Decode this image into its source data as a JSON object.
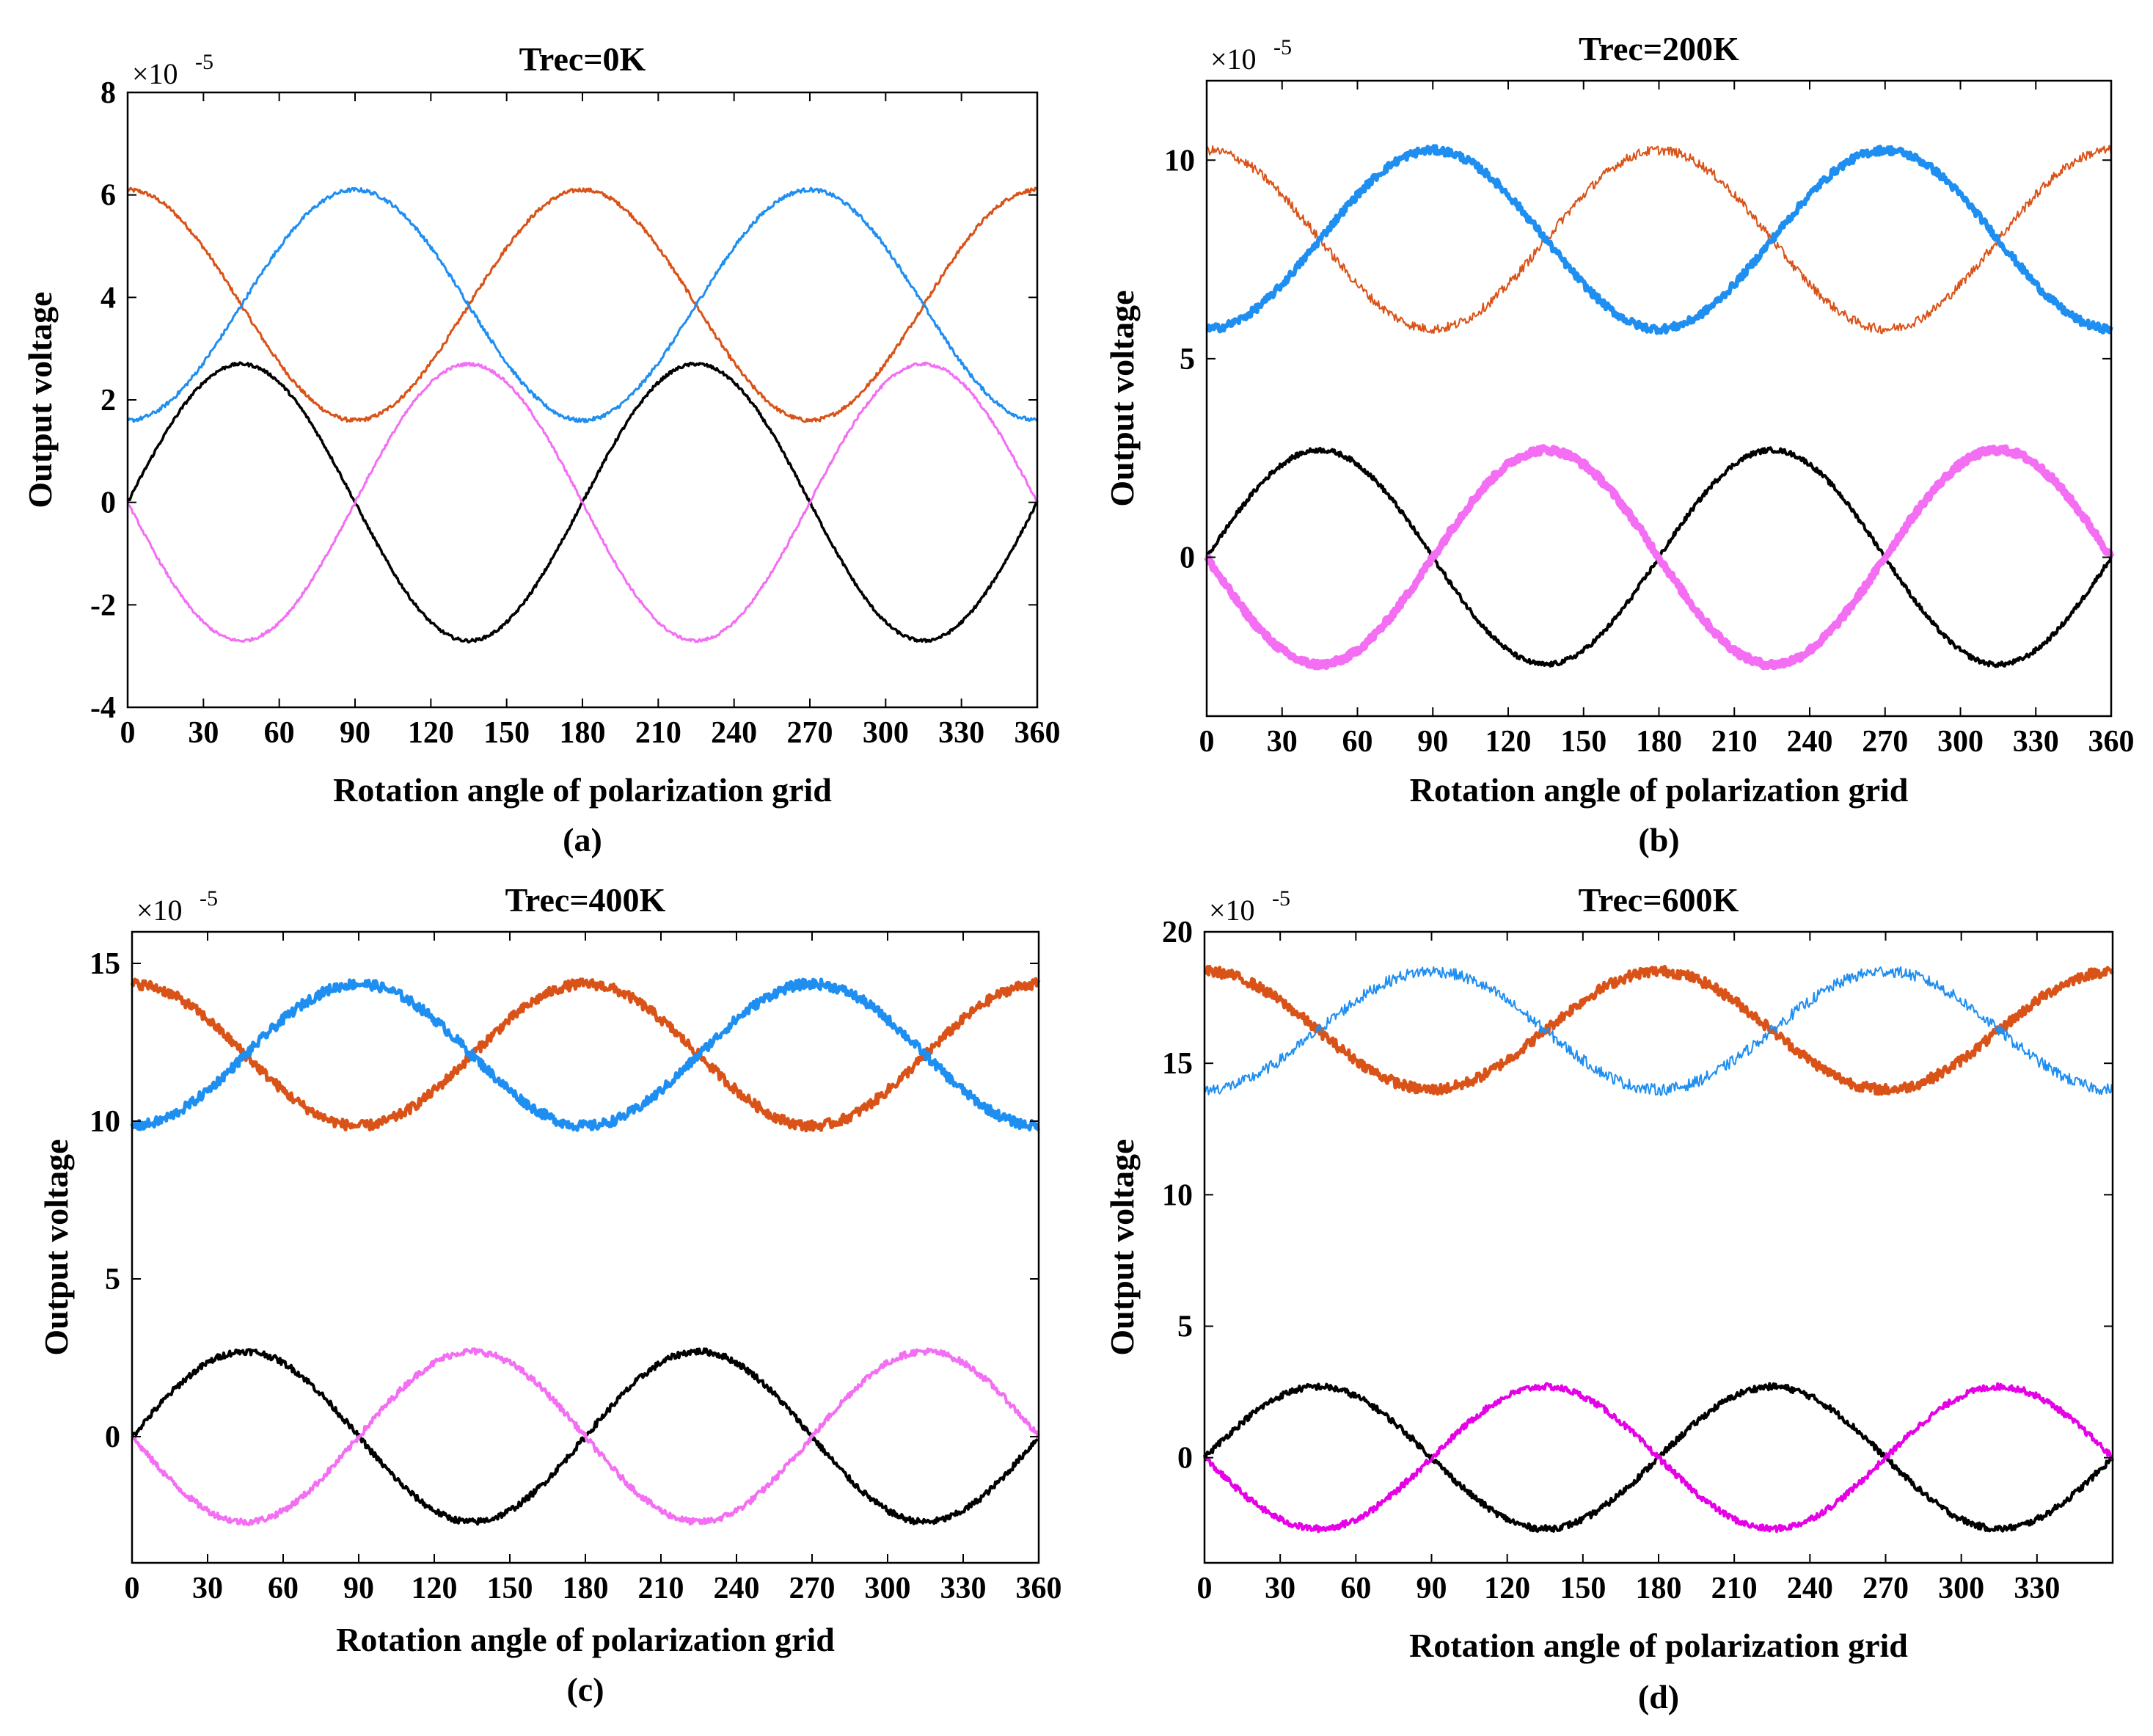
{
  "figure": {
    "panels": [
      "a",
      "b",
      "c",
      "d"
    ]
  },
  "chart_data": [
    {
      "id": "a",
      "type": "line",
      "title": "Trec=0K",
      "caption": "(a)",
      "xlabel": "Rotation angle of polarization grid",
      "ylabel": "Output voltage",
      "exponent_label": "×10",
      "exponent_power": "-5",
      "xlim": [
        0,
        360
      ],
      "ylim": [
        -4,
        8
      ],
      "xticks": [
        0,
        30,
        60,
        90,
        120,
        150,
        180,
        210,
        240,
        270,
        300,
        330,
        360
      ],
      "yticks": [
        -4,
        -2,
        0,
        2,
        4,
        6,
        8
      ],
      "yticklabels": [
        "-4",
        "-2",
        "0",
        "2",
        "4",
        "6",
        "8"
      ],
      "series": [
        {
          "name": "channel-orange",
          "color": "#d95319",
          "formula": "offset + amp*cos(2x)",
          "offset": 3.85,
          "amp": 2.25,
          "noise": 0.04,
          "width": 3
        },
        {
          "name": "channel-blue",
          "color": "#1f8ef1",
          "formula": "offset - amp*cos(2x)",
          "offset": 3.85,
          "amp": 2.25,
          "noise": 0.04,
          "width": 3
        },
        {
          "name": "channel-black",
          "color": "#000000",
          "formula": "amp*sin(2x)",
          "amp": 2.7,
          "noise": 0.03,
          "width": 3.5
        },
        {
          "name": "channel-magenta",
          "color": "#f36ef3",
          "formula": "-amp*sin(2x)",
          "amp": 2.7,
          "noise": 0.03,
          "width": 3
        }
      ]
    },
    {
      "id": "b",
      "type": "line",
      "title": "Trec=200K",
      "caption": "(b)",
      "xlabel": "Rotation angle of polarization grid",
      "ylabel": "Output voltage",
      "exponent_label": "×10",
      "exponent_power": "-5",
      "xlim": [
        0,
        360
      ],
      "ylim": [
        -4,
        12
      ],
      "xticks": [
        0,
        30,
        60,
        90,
        120,
        150,
        180,
        210,
        240,
        270,
        300,
        330,
        360
      ],
      "yticks": [
        0,
        5,
        10
      ],
      "yticklabels": [
        "0",
        "5",
        "10"
      ],
      "series": [
        {
          "name": "channel-orange",
          "color": "#d95319",
          "formula": "offset + amp*cos(2x)",
          "offset": 8.0,
          "amp": 2.25,
          "noise": 0.12,
          "width": 2
        },
        {
          "name": "channel-blue",
          "color": "#1f8ef1",
          "formula": "offset - amp*cos(2x)",
          "offset": 8.0,
          "amp": 2.25,
          "noise": 0.1,
          "width": 6
        },
        {
          "name": "channel-black",
          "color": "#000000",
          "formula": "amp*sin(2x)",
          "amp": 2.7,
          "noise": 0.06,
          "width": 4
        },
        {
          "name": "channel-magenta",
          "color": "#f36ef3",
          "formula": "-amp*sin(2x)",
          "amp": 2.7,
          "noise": 0.08,
          "width": 9
        }
      ]
    },
    {
      "id": "c",
      "type": "line",
      "title": "Trec=400K",
      "caption": "(c)",
      "xlabel": "Rotation angle of polarization grid",
      "ylabel": "Output voltage",
      "exponent_label": "×10",
      "exponent_power": "-5",
      "xlim": [
        0,
        360
      ],
      "ylim": [
        -4,
        16
      ],
      "xticks": [
        0,
        30,
        60,
        90,
        120,
        150,
        180,
        210,
        240,
        270,
        300,
        330,
        360
      ],
      "yticks": [
        0,
        5,
        10,
        15
      ],
      "yticklabels": [
        "0",
        "5",
        "10",
        "15"
      ],
      "series": [
        {
          "name": "channel-orange",
          "color": "#d95319",
          "formula": "offset + amp*cos(2x)",
          "offset": 12.1,
          "amp": 2.25,
          "noise": 0.16,
          "width": 5
        },
        {
          "name": "channel-blue",
          "color": "#1f8ef1",
          "formula": "offset - amp*cos(2x)",
          "offset": 12.1,
          "amp": 2.25,
          "noise": 0.16,
          "width": 5
        },
        {
          "name": "channel-black",
          "color": "#000000",
          "formula": "amp*sin(2x)",
          "amp": 2.7,
          "noise": 0.1,
          "width": 4
        },
        {
          "name": "channel-magenta",
          "color": "#f36ef3",
          "formula": "-amp*sin(2x)",
          "amp": 2.7,
          "noise": 0.1,
          "width": 4
        }
      ]
    },
    {
      "id": "d",
      "type": "line",
      "title": "Trec=600K",
      "caption": "(d)",
      "xlabel": "Rotation angle of polarization grid",
      "ylabel": "Output voltage",
      "exponent_label": "×10",
      "exponent_power": "-5",
      "xlim": [
        0,
        360
      ],
      "ylim": [
        -4,
        20
      ],
      "xticks": [
        0,
        30,
        60,
        90,
        120,
        150,
        180,
        210,
        240,
        270,
        300,
        330
      ],
      "yticks": [
        0,
        5,
        10,
        15,
        20
      ],
      "yticklabels": [
        "0",
        "5",
        "10",
        "15",
        "20"
      ],
      "series": [
        {
          "name": "channel-orange",
          "color": "#d95319",
          "formula": "offset + amp*cos(2x)",
          "offset": 16.25,
          "amp": 2.25,
          "noise": 0.2,
          "width": 5
        },
        {
          "name": "channel-blue",
          "color": "#1f8ef1",
          "formula": "offset - amp*cos(2x)",
          "offset": 16.25,
          "amp": 2.25,
          "noise": 0.22,
          "width": 2
        },
        {
          "name": "channel-black",
          "color": "#000000",
          "formula": "amp*sin(2x)",
          "amp": 2.7,
          "noise": 0.12,
          "width": 4
        },
        {
          "name": "channel-magenta",
          "color": "#e600e6",
          "formula": "-amp*sin(2x)",
          "amp": 2.7,
          "noise": 0.12,
          "width": 4
        }
      ]
    }
  ]
}
